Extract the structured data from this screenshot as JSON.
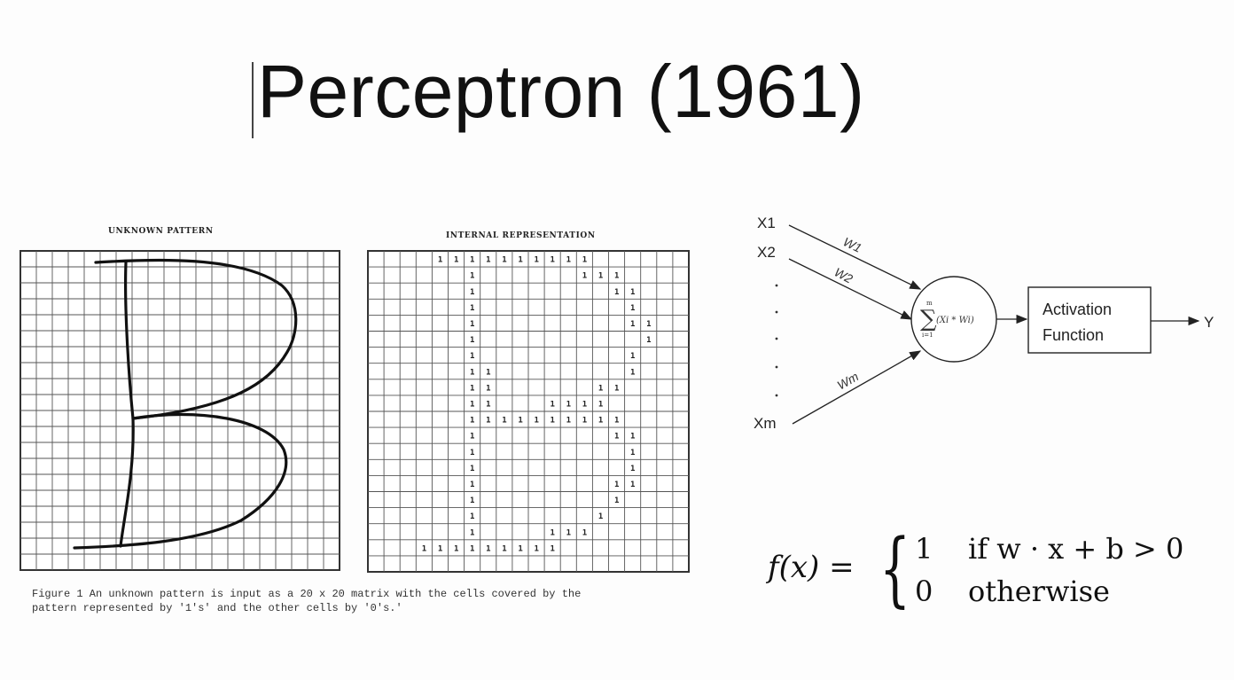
{
  "slide": {
    "title": "Perceptron (1961)"
  },
  "figure": {
    "unknown_label": "UNKNOWN PATTERN",
    "internal_label": "INTERNAL REPRESENTATION",
    "caption_line1": "Figure 1  An unknown pattern is input as a 20 x 20 matrix with the cells covered by the",
    "caption_line2": "pattern represented by '1's' and the other cells by '0's.'",
    "cell_value": "1",
    "matrix_size": 20,
    "ones_rows": [
      {
        "row": 0,
        "cols": [
          4,
          5,
          6,
          7,
          8,
          9,
          10,
          11,
          12,
          13
        ]
      },
      {
        "row": 1,
        "cols": [
          6,
          13,
          14,
          15
        ]
      },
      {
        "row": 2,
        "cols": [
          6,
          15,
          16
        ]
      },
      {
        "row": 3,
        "cols": [
          6,
          16
        ]
      },
      {
        "row": 4,
        "cols": [
          6,
          16,
          17
        ]
      },
      {
        "row": 5,
        "cols": [
          6,
          17
        ]
      },
      {
        "row": 6,
        "cols": [
          6,
          16
        ]
      },
      {
        "row": 7,
        "cols": [
          6,
          7,
          16
        ]
      },
      {
        "row": 8,
        "cols": [
          6,
          7,
          14,
          15
        ]
      },
      {
        "row": 9,
        "cols": [
          6,
          7,
          11,
          12,
          13,
          14
        ]
      },
      {
        "row": 10,
        "cols": [
          6,
          7,
          8,
          9,
          10,
          11,
          12,
          13,
          14,
          15
        ]
      },
      {
        "row": 11,
        "cols": [
          6,
          15,
          16
        ]
      },
      {
        "row": 12,
        "cols": [
          6,
          16
        ]
      },
      {
        "row": 13,
        "cols": [
          6,
          16
        ]
      },
      {
        "row": 14,
        "cols": [
          6,
          15,
          16
        ]
      },
      {
        "row": 15,
        "cols": [
          6,
          15
        ]
      },
      {
        "row": 16,
        "cols": [
          6,
          14
        ]
      },
      {
        "row": 17,
        "cols": [
          6,
          11,
          12,
          13
        ]
      },
      {
        "row": 18,
        "cols": [
          3,
          4,
          5,
          6,
          7,
          8,
          9,
          10,
          11
        ]
      }
    ]
  },
  "diagram": {
    "input_x1": "X1",
    "input_x2": "X2",
    "input_xm": "Xm",
    "weight_w1": "W1",
    "weight_w2": "W2",
    "weight_wm": "Wm",
    "activation_line1": "Activation",
    "activation_line2": "Function",
    "output_label": "Y",
    "sum_upper": "m",
    "sum_lower": "i=1",
    "sum_term": "(Xi * Wi)"
  },
  "formula": {
    "lhs": "f(x) =",
    "case1_value": "1",
    "case1_condition": "if w · x + b > 0",
    "case2_value": "0",
    "case2_condition": "otherwise"
  }
}
